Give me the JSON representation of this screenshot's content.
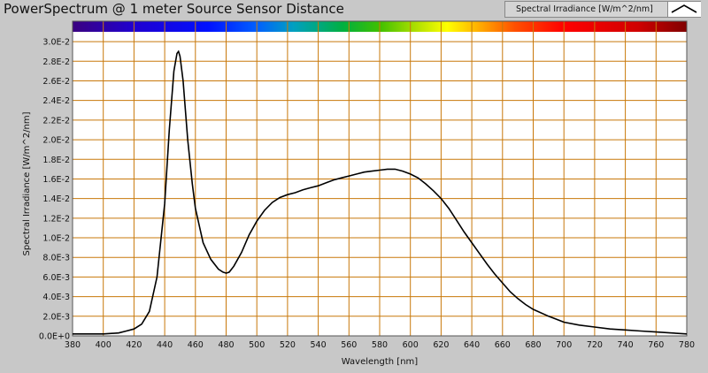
{
  "header": {
    "title": "PowerSpectrum @ 1 meter Source Sensor Distance",
    "legend_label": "Spectral Irradiance [W/m^2/nm]"
  },
  "colors": {
    "plot_background": "#ffffff",
    "grid": "#c8780a",
    "curve": "#000000",
    "frame": "#c8c8c8"
  },
  "chart_data": {
    "type": "line",
    "xlabel": "Wavelength [nm]",
    "ylabel": "Spectral Irradiance [W/m^2/nm]",
    "xlim": [
      380,
      780
    ],
    "ylim": [
      0,
      0.031
    ],
    "x_ticks": [
      380,
      400,
      420,
      440,
      460,
      480,
      500,
      520,
      540,
      560,
      580,
      600,
      620,
      640,
      660,
      680,
      700,
      720,
      740,
      760,
      780
    ],
    "y_ticks": [
      0,
      0.002,
      0.004,
      0.006,
      0.008,
      0.01,
      0.012,
      0.014,
      0.016,
      0.018,
      0.02,
      0.022,
      0.024,
      0.026,
      0.028,
      0.03
    ],
    "y_tick_labels": [
      "0.0E+0",
      "2.0E-3",
      "4.0E-3",
      "6.0E-3",
      "8.0E-3",
      "1.0E-2",
      "1.2E-2",
      "1.4E-2",
      "1.6E-2",
      "1.8E-2",
      "2.0E-2",
      "2.2E-2",
      "2.4E-2",
      "2.6E-2",
      "2.8E-2",
      "3.0E-2"
    ],
    "grid": true,
    "color_bar": "visible spectrum",
    "series": [
      {
        "x": [
          380,
          390,
          400,
          410,
          415,
          420,
          425,
          430,
          435,
          440,
          443,
          446,
          448,
          449,
          450,
          452,
          455,
          458,
          460,
          465,
          470,
          475,
          478,
          480,
          482,
          485,
          490,
          495,
          500,
          505,
          510,
          515,
          520,
          525,
          530,
          535,
          540,
          545,
          550,
          555,
          560,
          565,
          570,
          575,
          580,
          585,
          590,
          595,
          600,
          605,
          610,
          615,
          620,
          625,
          630,
          635,
          640,
          645,
          650,
          655,
          660,
          665,
          670,
          675,
          680,
          690,
          700,
          710,
          720,
          730,
          740,
          750,
          760,
          770,
          780
        ],
        "values": [
          0.0002,
          0.0002,
          0.0002,
          0.0003,
          0.0005,
          0.0007,
          0.0012,
          0.0025,
          0.006,
          0.0135,
          0.021,
          0.027,
          0.0288,
          0.029,
          0.0285,
          0.026,
          0.02,
          0.0155,
          0.013,
          0.0095,
          0.0078,
          0.0068,
          0.0065,
          0.0064,
          0.0065,
          0.0071,
          0.0085,
          0.0103,
          0.0117,
          0.0128,
          0.0136,
          0.0141,
          0.0144,
          0.0146,
          0.0149,
          0.0151,
          0.0153,
          0.0156,
          0.0159,
          0.0161,
          0.0163,
          0.0165,
          0.0167,
          0.0168,
          0.0169,
          0.017,
          0.017,
          0.0168,
          0.0165,
          0.0161,
          0.0155,
          0.0148,
          0.014,
          0.013,
          0.0118,
          0.0106,
          0.0095,
          0.0084,
          0.0073,
          0.0063,
          0.0054,
          0.0045,
          0.0038,
          0.0032,
          0.0027,
          0.002,
          0.0014,
          0.0011,
          0.0009,
          0.0007,
          0.0006,
          0.0005,
          0.0004,
          0.0003,
          0.0002
        ]
      }
    ]
  }
}
